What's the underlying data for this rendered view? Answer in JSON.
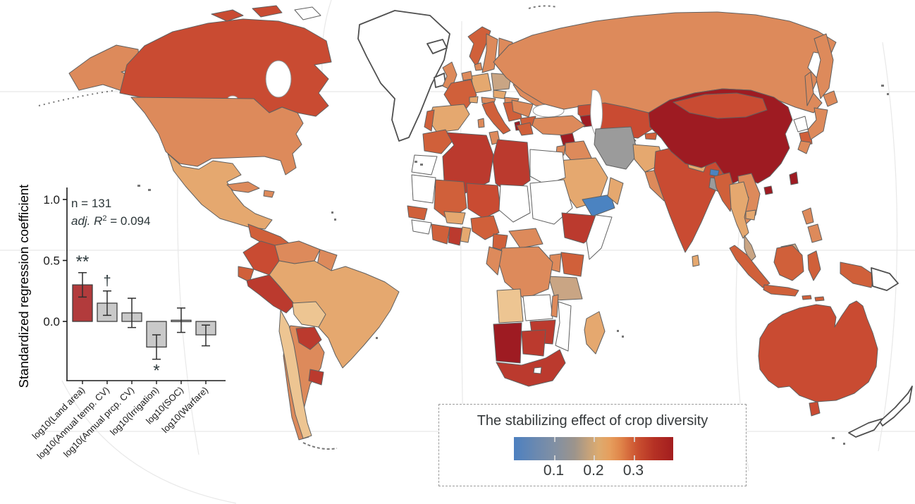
{
  "figure": {
    "background": "#ffffff"
  },
  "chart_data": {
    "type": "bar",
    "title": "",
    "xlabel": "",
    "ylabel": "Standardized regression coefficient",
    "categories": [
      "log10(Land area)",
      "log10(Annual temp. CV)",
      "log10(Annual prcp. CV)",
      "log10(Irrigation)",
      "log10(SOC)",
      "log10(Warfare)"
    ],
    "values": [
      0.3,
      0.15,
      0.07,
      -0.21,
      0.01,
      -0.11
    ],
    "error_low": [
      0.2,
      0.05,
      -0.05,
      -0.31,
      -0.09,
      -0.2
    ],
    "error_high": [
      0.4,
      0.25,
      0.19,
      -0.11,
      0.11,
      -0.03
    ],
    "significance": [
      "**",
      "†",
      "",
      "*",
      "",
      ""
    ],
    "significance_position": [
      "above",
      "above",
      "",
      "below",
      "",
      ""
    ],
    "bar_colors": [
      "#b23b3c",
      "#c9c9c9",
      "#c9c9c9",
      "#c9c9c9",
      "#c9c9c9",
      "#c9c9c9"
    ],
    "ylim": [
      -0.49,
      1.1
    ],
    "grid": false,
    "yticks": [
      {
        "value": 0.0,
        "label": "0.0"
      },
      {
        "value": 0.5,
        "label": "0.5"
      },
      {
        "value": 1.0,
        "label": "1.0"
      }
    ],
    "stats": {
      "n": "n = 131",
      "r2_prefix": "adj. R",
      "r2_sup": "2",
      "r2_suffix": " = 0.094"
    }
  },
  "legend": {
    "title": "The stabilizing effect of crop diversity",
    "ticks": [
      "0.1",
      "0.2",
      "0.3"
    ],
    "tick_positions_pct": [
      25,
      50,
      75
    ],
    "gradient_stops": [
      "#4d80c0 0%",
      "#6b89b0 14%",
      "#8290a3 26%",
      "#9c948c 38%",
      "#c5a27a 47%",
      "#dcab70 53%",
      "#e69f5e 60%",
      "#e0854a 67%",
      "#d4663a 73%",
      "#c94f30 78%",
      "#b53124 88%",
      "#a31d1f 100%"
    ]
  },
  "map": {
    "projection": "world choropleth",
    "colors": {
      "dark_red": "#9e1b22",
      "red": "#bb3a2e",
      "brick": "#c94b32",
      "red_orange": "#d0603a",
      "orange": "#dd8a5b",
      "tan": "#e5a86f",
      "light_tan": "#edc592",
      "gray_tan": "#c9a584",
      "gray": "#9b9b9b",
      "blue": "#4b83c1",
      "no_data": "#ffffff",
      "graticule": "#e8e8e8",
      "border": "#606060",
      "coastline": "#4f4f4f",
      "water": "#ffffff"
    }
  }
}
